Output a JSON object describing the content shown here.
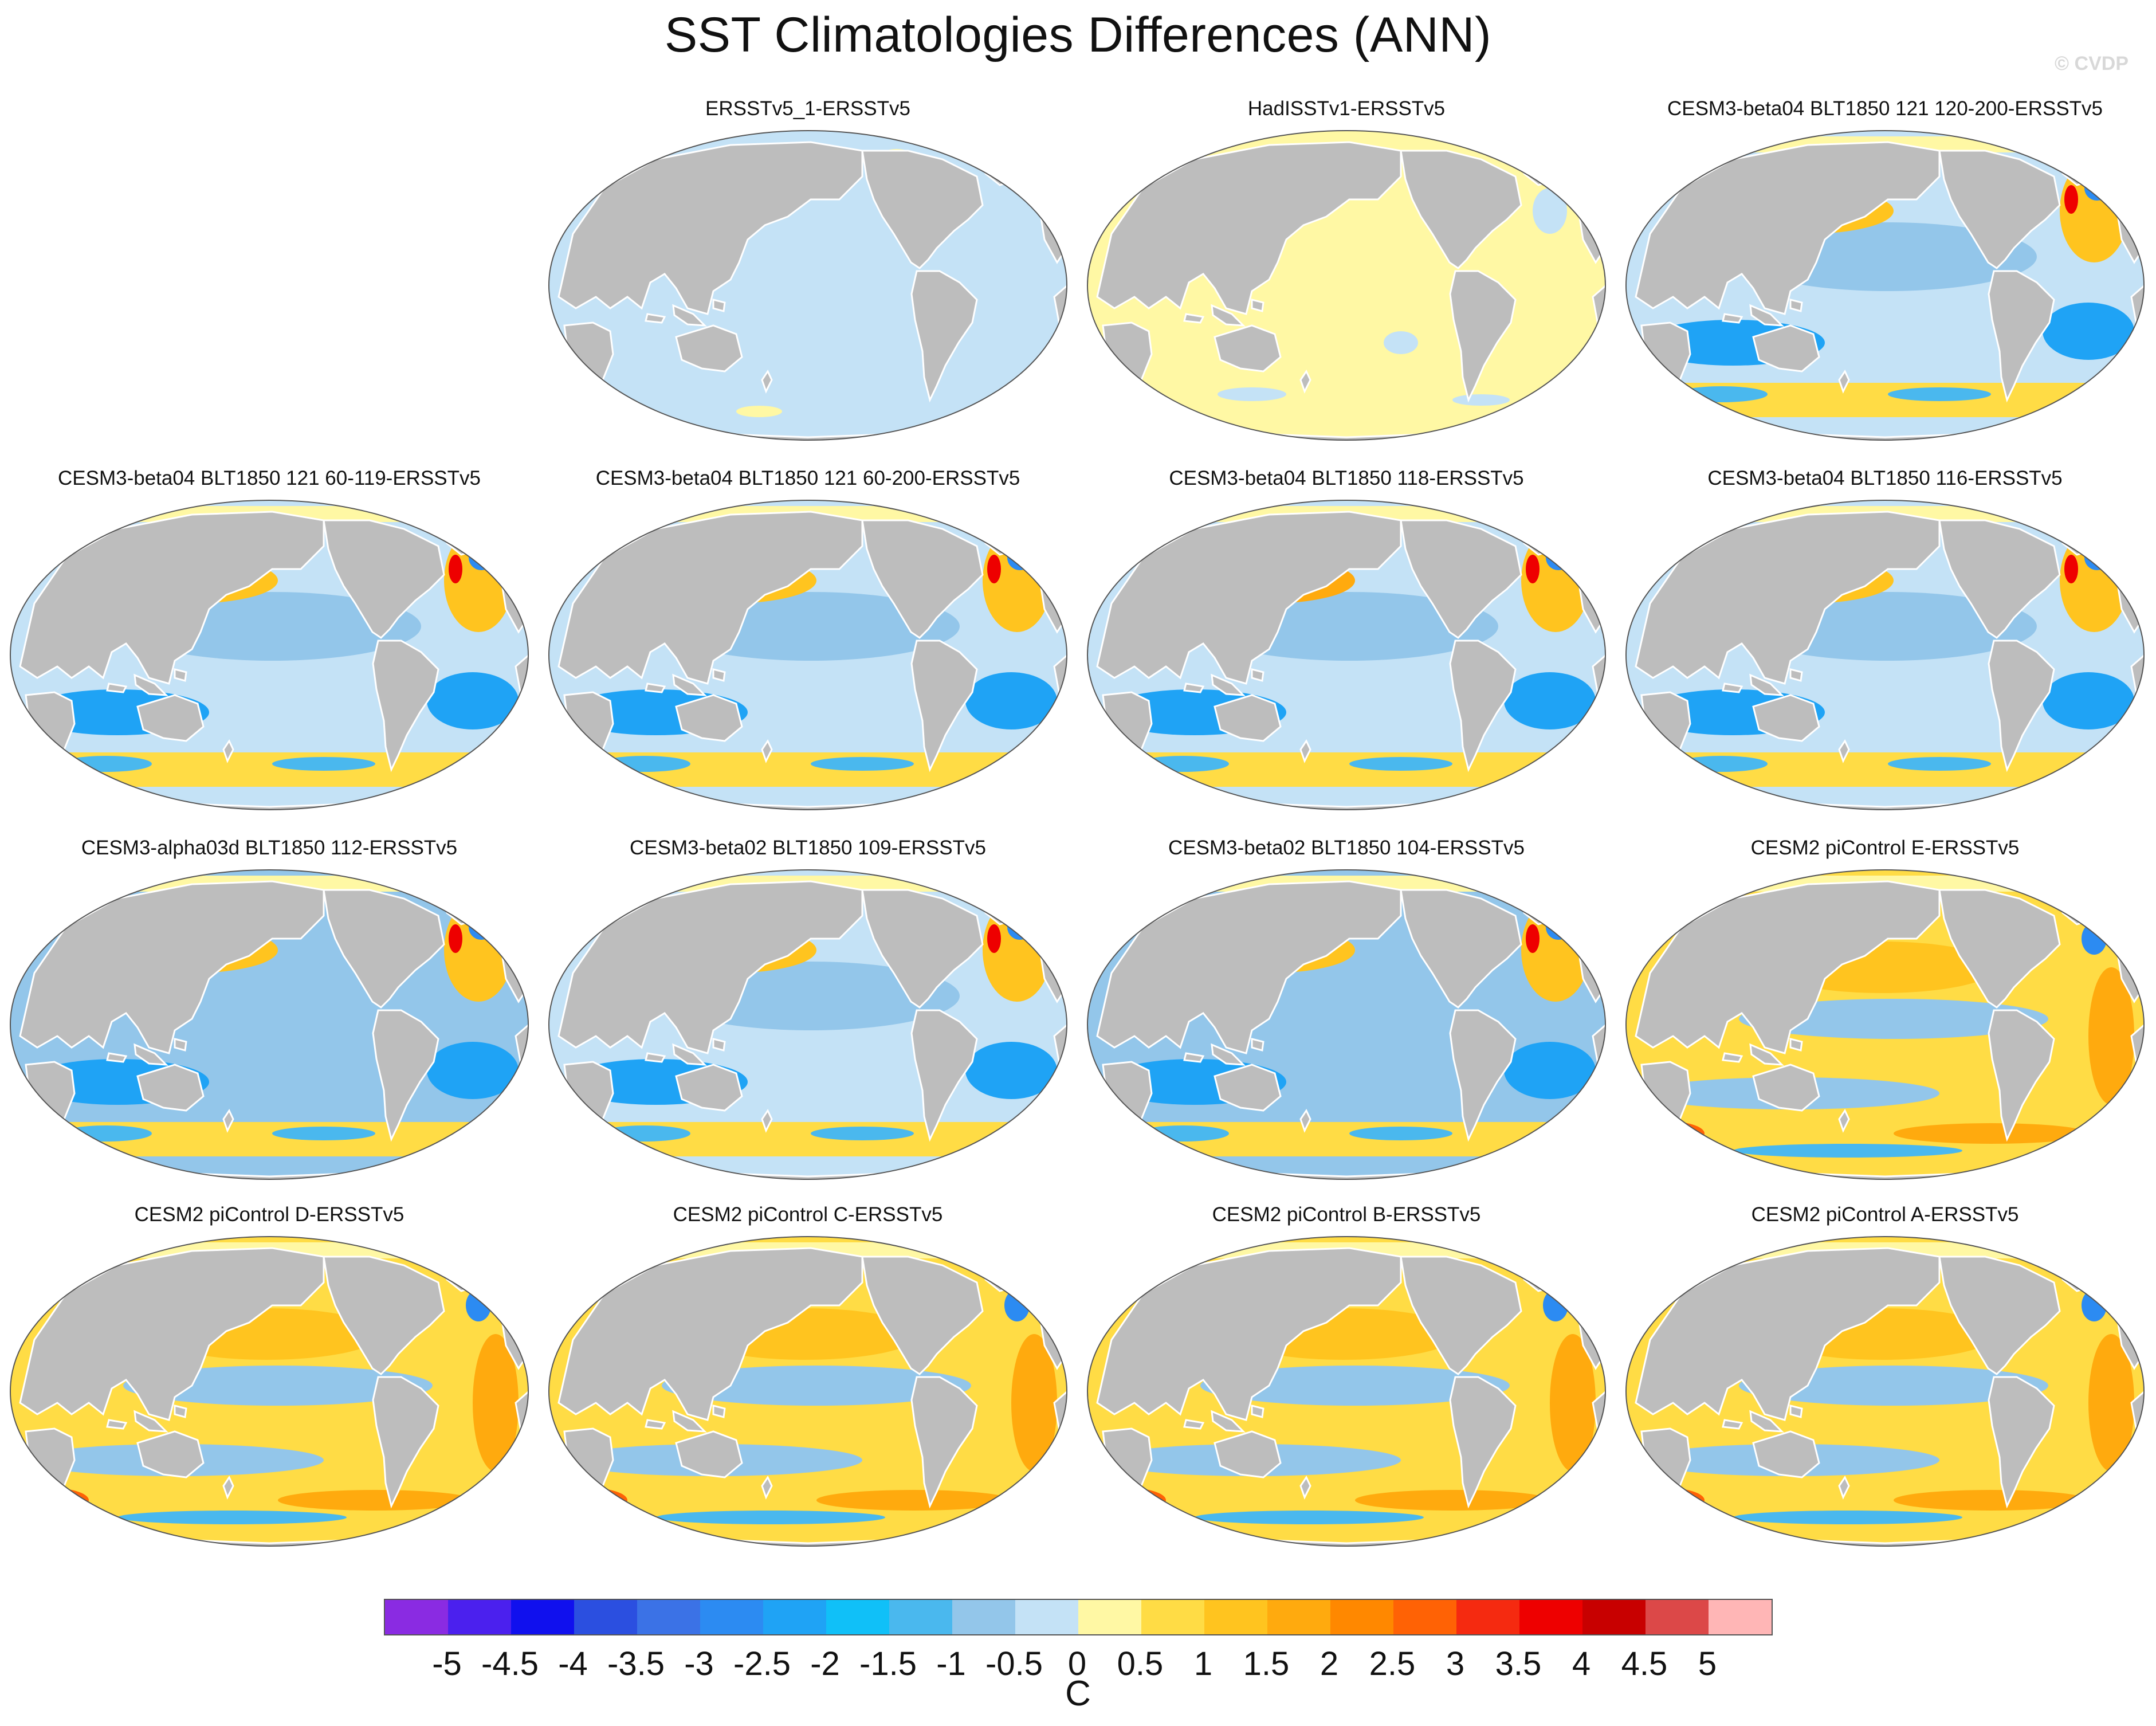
{
  "title": "SST Climatologies Differences (ANN)",
  "watermark": "© CVDP",
  "colors": {
    "land": "#bdbdbd",
    "coast": "#ffffff",
    "outline": "#555555"
  },
  "panels": [
    {
      "title": "ERSSTv5_1-ERSSTv5",
      "pattern": "uniform-cool"
    },
    {
      "title": "HadISSTv1-ERSSTv5",
      "pattern": "uniform-warm"
    },
    {
      "title": "CESM3-beta04 BLT1850 121 120-200-ERSSTv5",
      "pattern": "cesm3"
    },
    {
      "title": "CESM3-beta04 BLT1850 121 60-119-ERSSTv5",
      "pattern": "cesm3"
    },
    {
      "title": "CESM3-beta04 BLT1850 121 60-200-ERSSTv5",
      "pattern": "cesm3"
    },
    {
      "title": "CESM3-beta04 BLT1850 118-ERSSTv5",
      "pattern": "cesm3-warm"
    },
    {
      "title": "CESM3-beta04 BLT1850 116-ERSSTv5",
      "pattern": "cesm3"
    },
    {
      "title": "CESM3-alpha03d BLT1850 112-ERSSTv5",
      "pattern": "cesm3-cool"
    },
    {
      "title": "CESM3-beta02 BLT1850 109-ERSSTv5",
      "pattern": "cesm3"
    },
    {
      "title": "CESM3-beta02 BLT1850 104-ERSSTv5",
      "pattern": "cesm3-cool"
    },
    {
      "title": "CESM2 piControl E-ERSSTv5",
      "pattern": "cesm2"
    },
    {
      "title": "CESM2 piControl D-ERSSTv5",
      "pattern": "cesm2"
    },
    {
      "title": "CESM2 piControl C-ERSSTv5",
      "pattern": "cesm2"
    },
    {
      "title": "CESM2 piControl B-ERSSTv5",
      "pattern": "cesm2"
    },
    {
      "title": "CESM2 piControl A-ERSSTv5",
      "pattern": "cesm2"
    }
  ],
  "colorbar": {
    "unit": "C",
    "ticks": [
      "-5",
      "-4.5",
      "-4",
      "-3.5",
      "-3",
      "-2.5",
      "-2",
      "-1.5",
      "-1",
      "-0.5",
      "0",
      "0.5",
      "1",
      "1.5",
      "2",
      "2.5",
      "3",
      "3.5",
      "4",
      "4.5",
      "5"
    ],
    "colors": [
      "#8a2be2",
      "#4b20ee",
      "#1010ee",
      "#2b4fe0",
      "#3b72e6",
      "#2c8bf2",
      "#1fa3f5",
      "#10c0f8",
      "#4ab8ee",
      "#93c6ea",
      "#c4e2f6",
      "#fff8a4",
      "#ffdc45",
      "#ffc41f",
      "#ffaa0e",
      "#ff8800",
      "#ff6205",
      "#f52a10",
      "#ee0000",
      "#c80000",
      "#dc4848",
      "#ffb6b6"
    ]
  }
}
